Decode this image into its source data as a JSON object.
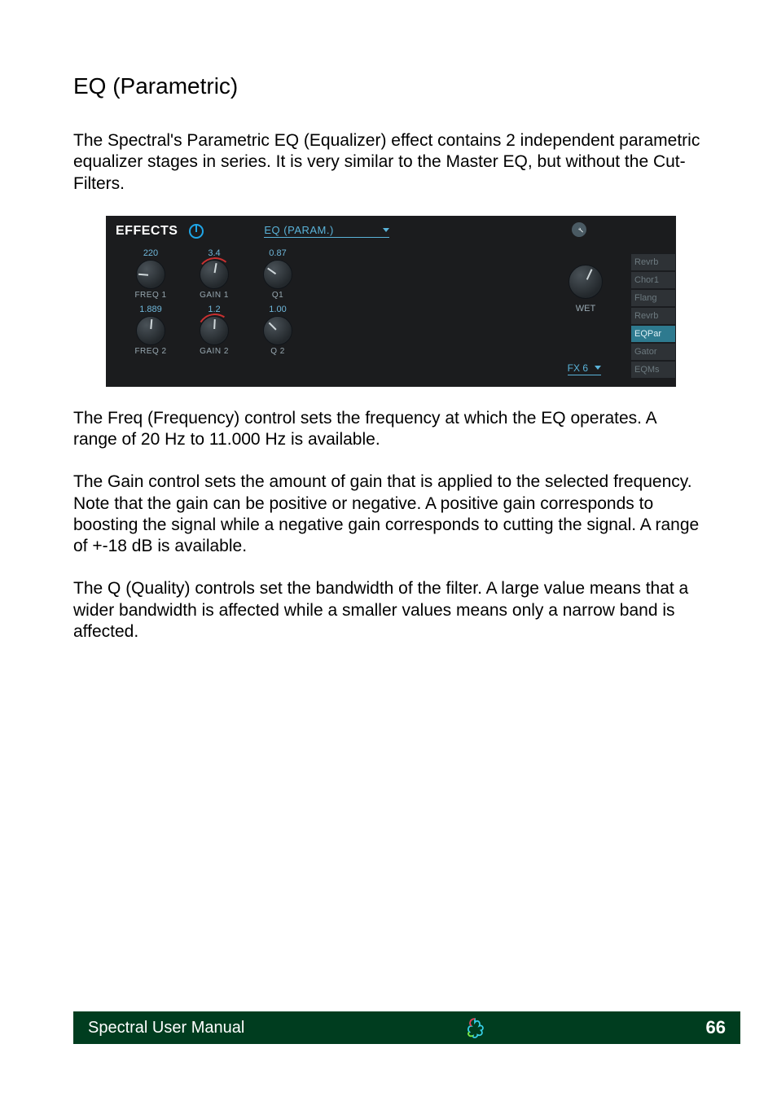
{
  "heading": "EQ (Parametric)",
  "para1": "The Spectral's Parametric EQ (Equalizer) effect contains 2 independent parametric equalizer stages in series. It is very similar to the Master EQ, but without the Cut-Filters.",
  "para2": "The Freq (Frequency) control sets the frequency at which the EQ operates. A range of 20 Hz to 11.000 Hz is available.",
  "para3": "The Gain control sets the amount of gain that is applied to the selected frequency. Note that the gain can be positive or negative. A positive gain corresponds to boosting the signal while a negative gain corresponds to cutting the signal. A range of +-18 dB is available.",
  "para4": "The Q (Quality) controls set the bandwidth of the filter. A large value means that a wider bandwidth is affected while a smaller values means only a narrow band is affected.",
  "panel": {
    "title": "EFFECTS",
    "selector": "EQ (PARAM.)",
    "knobs": [
      {
        "val": "220",
        "label": "FREQ 1",
        "angle": -85,
        "arc": "#205060"
      },
      {
        "val": "3.4",
        "label": "GAIN 1",
        "angle": 10,
        "arc": "#205060",
        "arcColor": "#c83030"
      },
      {
        "val": "0.87",
        "label": "Q1",
        "angle": -55,
        "arc": "#205060"
      },
      {
        "val": "1.889",
        "label": "FREQ 2",
        "angle": 5,
        "arc": "#205060"
      },
      {
        "val": "1.2",
        "label": "GAIN 2",
        "angle": 3,
        "arc": "#205060",
        "arcColor": "#c83030"
      },
      {
        "val": "1.00",
        "label": "Q 2",
        "angle": -45,
        "arc": "#205060"
      }
    ],
    "wet": {
      "label": "WET",
      "angle": 25
    },
    "fxSlot": "FX 6",
    "slots": [
      {
        "label": "Revrb",
        "active": false
      },
      {
        "label": "Chor1",
        "active": false
      },
      {
        "label": "Flang",
        "active": false
      },
      {
        "label": "Revrb",
        "active": false
      },
      {
        "label": "EQPar",
        "active": true
      },
      {
        "label": "Gator",
        "active": false
      },
      {
        "label": "EQMs",
        "active": false
      }
    ]
  },
  "footer": {
    "title": "Spectral User Manual",
    "page": "66"
  },
  "colors": {
    "panelBg": "#1b1c1e",
    "accent": "#5ab3d9",
    "footerBg": "#003d1f"
  }
}
